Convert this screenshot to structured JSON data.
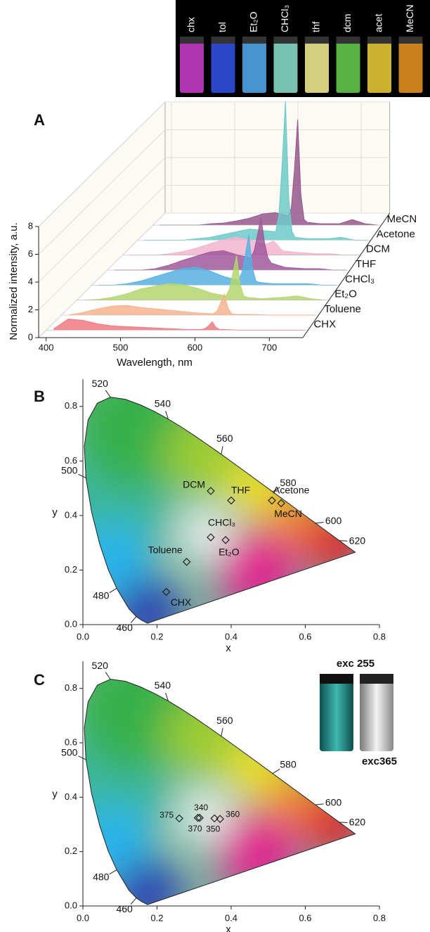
{
  "photo": {
    "labels": [
      "chx",
      "tol",
      "Et₂O",
      "CHCl₃",
      "thf",
      "dcm",
      "acet",
      "MeCN"
    ],
    "colors": [
      "#c23ac4",
      "#2f4fe0",
      "#4fa3e6",
      "#86d6c4",
      "#ece48a",
      "#62c447",
      "#e3c332",
      "#e08e22"
    ]
  },
  "chart_data": [
    {
      "type": "waterfall",
      "panel_label": "A",
      "xlabel": "Wavelength, nm",
      "ylabel": "Normalized intensity, a.u.",
      "x": [
        400,
        420,
        440,
        460,
        480,
        500,
        520,
        540,
        560,
        580,
        600,
        605,
        610,
        615,
        620,
        625,
        630,
        650,
        680,
        700,
        720,
        740
      ],
      "xlim": [
        390,
        745
      ],
      "xticks": [
        400,
        500,
        600,
        700
      ],
      "ylim": [
        0,
        8
      ],
      "yticks": [
        0,
        2,
        4,
        6,
        8
      ],
      "grid": true,
      "series": [
        {
          "name": "CHX",
          "color": "#f07a80",
          "values": [
            0.1,
            0.8,
            0.7,
            0.45,
            0.3,
            0.25,
            0.2,
            0.15,
            0.1,
            0.05,
            0.05,
            0.1,
            0.3,
            0.6,
            0.2,
            0.05,
            0.05,
            0,
            0,
            0,
            0,
            0
          ]
        },
        {
          "name": "Toluene",
          "color": "#f6b48e",
          "values": [
            0,
            0.2,
            0.45,
            0.65,
            0.7,
            0.55,
            0.45,
            0.35,
            0.25,
            0.15,
            0.1,
            0.3,
            0.9,
            1.5,
            0.5,
            0.1,
            0.05,
            0.05,
            0,
            0,
            0,
            0
          ]
        },
        {
          "name": "Et₂O",
          "color": "#b2d66e",
          "values": [
            0,
            0.05,
            0.2,
            0.45,
            0.8,
            1.0,
            1.2,
            1.1,
            0.85,
            0.5,
            0.3,
            0.8,
            2.0,
            3.2,
            1.1,
            0.3,
            0.2,
            0.1,
            0.2,
            0.3,
            0.1,
            0
          ]
        },
        {
          "name": "CHCl₃",
          "color": "#56b2e2",
          "values": [
            0,
            0,
            0.1,
            0.3,
            0.6,
            0.9,
            1.2,
            1.3,
            1.0,
            0.6,
            0.35,
            0.9,
            2.2,
            3.6,
            1.3,
            0.3,
            0.2,
            0.1,
            0.1,
            0.1,
            0,
            0
          ]
        },
        {
          "name": "THF",
          "color": "#a0589a",
          "values": [
            0,
            0,
            0,
            0.1,
            0.35,
            0.7,
            1.0,
            1.3,
            1.4,
            1.1,
            0.9,
            1.4,
            2.6,
            3.8,
            2.0,
            0.9,
            0.5,
            0.2,
            0.1,
            0.1,
            0,
            0
          ]
        },
        {
          "name": "DCM",
          "color": "#f3b4cf",
          "values": [
            0,
            0,
            0,
            0.1,
            0.25,
            0.5,
            0.8,
            1.1,
            1.3,
            1.1,
            0.8,
            0.8,
            0.9,
            1.0,
            0.8,
            0.5,
            0.3,
            0.2,
            0.1,
            0.1,
            0,
            0
          ]
        },
        {
          "name": "Acetone",
          "color": "#6ccaca",
          "values": [
            0,
            0,
            0,
            0,
            0.1,
            0.2,
            0.4,
            0.6,
            0.8,
            0.7,
            0.6,
            1.8,
            5.5,
            10,
            3.0,
            0.6,
            0.2,
            0.1,
            0.1,
            0.2,
            0,
            0
          ]
        },
        {
          "name": "MeCN",
          "color": "#96578e",
          "values": [
            0,
            0,
            0,
            0,
            0.1,
            0.15,
            0.3,
            0.5,
            0.8,
            0.9,
            0.7,
            1.2,
            4.0,
            7.6,
            2.2,
            0.4,
            0.2,
            0.1,
            0.1,
            0.4,
            0.1,
            0
          ]
        }
      ]
    },
    {
      "type": "cie",
      "panel_label": "B",
      "xlabel": "x",
      "ylabel": "y",
      "xlim": [
        0,
        0.8
      ],
      "xticks": [
        {
          "value": 0,
          "label": "0.0"
        },
        0.2,
        0.4,
        0.6,
        0.8
      ],
      "ylim": [
        0,
        0.9
      ],
      "yticks": [
        {
          "value": 0,
          "label": "0.0"
        },
        0.2,
        0.4,
        0.6,
        0.8
      ],
      "locus_labels": {
        "wavelengths": [
          460,
          480,
          500,
          520,
          540,
          560,
          580,
          600,
          620
        ],
        "x": [
          0.144,
          0.091,
          0.008,
          0.074,
          0.23,
          0.373,
          0.512,
          0.627,
          0.691
        ],
        "y": [
          0.03,
          0.133,
          0.538,
          0.834,
          0.754,
          0.624,
          0.487,
          0.372,
          0.308
        ]
      },
      "point_labels": [
        "DCM",
        "THF",
        "Acetone",
        "MeCN",
        "CHCl₃",
        "Et₂O",
        "Toluene",
        "CHX"
      ],
      "x": [
        0.345,
        0.4,
        0.51,
        0.535,
        0.345,
        0.385,
        0.28,
        0.225
      ],
      "values": [
        0.49,
        0.455,
        0.455,
        0.445,
        0.32,
        0.31,
        0.23,
        0.12
      ]
    },
    {
      "type": "cie",
      "panel_label": "C",
      "xlabel": "x",
      "ylabel": "y",
      "xlim": [
        0,
        0.8
      ],
      "xticks": [
        {
          "value": 0,
          "label": "0.0"
        },
        0.2,
        0.4,
        0.6,
        0.8
      ],
      "ylim": [
        0,
        0.9
      ],
      "yticks": [
        {
          "value": 0,
          "label": "0.0"
        },
        0.2,
        0.4,
        0.6,
        0.8
      ],
      "locus_labels": {
        "wavelengths": [
          460,
          480,
          500,
          520,
          540,
          560,
          580,
          600,
          620
        ],
        "x": [
          0.144,
          0.091,
          0.008,
          0.074,
          0.23,
          0.373,
          0.512,
          0.627,
          0.691
        ],
        "y": [
          0.03,
          0.133,
          0.538,
          0.834,
          0.754,
          0.624,
          0.487,
          0.372,
          0.308
        ]
      },
      "point_labels": [
        "375",
        "370",
        "340",
        "350",
        "360"
      ],
      "x": [
        0.26,
        0.31,
        0.315,
        0.355,
        0.37
      ],
      "values": [
        0.322,
        0.324,
        0.324,
        0.322,
        0.32
      ],
      "inset_labels": [
        "exc 255",
        "exc365"
      ]
    }
  ]
}
